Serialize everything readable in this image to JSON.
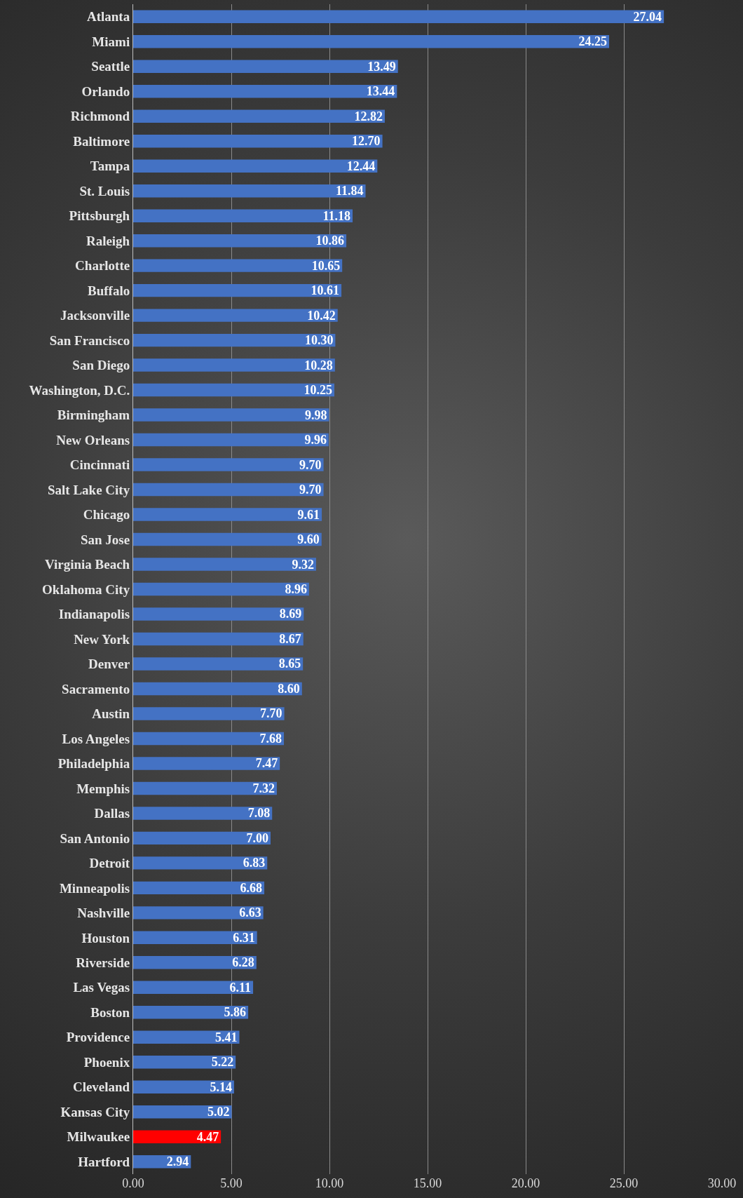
{
  "chart_data": {
    "type": "bar",
    "orientation": "horizontal",
    "categories": [
      "Atlanta",
      "Miami",
      "Seattle",
      "Orlando",
      "Richmond",
      "Baltimore",
      "Tampa",
      "St. Louis",
      "Pittsburgh",
      "Raleigh",
      "Charlotte",
      "Buffalo",
      "Jacksonville",
      "San Francisco",
      "San Diego",
      "Washington, D.C.",
      "Birmingham",
      "New Orleans",
      "Cincinnati",
      "Salt Lake City",
      "Chicago",
      "San Jose",
      "Virginia Beach",
      "Oklahoma City",
      "Indianapolis",
      "New York",
      "Denver",
      "Sacramento",
      "Austin",
      "Los Angeles",
      "Philadelphia",
      "Memphis",
      "Dallas",
      "San Antonio",
      "Detroit",
      "Minneapolis",
      "Nashville",
      "Houston",
      "Riverside",
      "Las Vegas",
      "Boston",
      "Providence",
      "Phoenix",
      "Cleveland",
      "Kansas City",
      "Milwaukee",
      "Hartford"
    ],
    "values": [
      27.04,
      24.25,
      13.49,
      13.44,
      12.82,
      12.7,
      12.44,
      11.84,
      11.18,
      10.86,
      10.65,
      10.61,
      10.42,
      10.3,
      10.28,
      10.25,
      9.98,
      9.96,
      9.7,
      9.7,
      9.61,
      9.6,
      9.32,
      8.96,
      8.69,
      8.67,
      8.65,
      8.6,
      7.7,
      7.68,
      7.47,
      7.32,
      7.08,
      7.0,
      6.83,
      6.68,
      6.63,
      6.31,
      6.28,
      6.11,
      5.86,
      5.41,
      5.22,
      5.14,
      5.02,
      4.47,
      2.94
    ],
    "value_labels": [
      "27.04",
      "24.25",
      "13.49",
      "13.44",
      "12.82",
      "12.70",
      "12.44",
      "11.84",
      "11.18",
      "10.86",
      "10.65",
      "10.61",
      "10.42",
      "10.30",
      "10.28",
      "10.25",
      "9.98",
      "9.96",
      "9.70",
      "9.70",
      "9.61",
      "9.60",
      "9.32",
      "8.96",
      "8.69",
      "8.67",
      "8.65",
      "8.60",
      "7.70",
      "7.68",
      "7.47",
      "7.32",
      "7.08",
      "7.00",
      "6.83",
      "6.68",
      "6.63",
      "6.31",
      "6.28",
      "6.11",
      "5.86",
      "5.41",
      "5.22",
      "5.14",
      "5.02",
      "4.47",
      "2.94"
    ],
    "colors": [
      "#4472c4",
      "#4472c4",
      "#4472c4",
      "#4472c4",
      "#4472c4",
      "#4472c4",
      "#4472c4",
      "#4472c4",
      "#4472c4",
      "#4472c4",
      "#4472c4",
      "#4472c4",
      "#4472c4",
      "#4472c4",
      "#4472c4",
      "#4472c4",
      "#4472c4",
      "#4472c4",
      "#4472c4",
      "#4472c4",
      "#4472c4",
      "#4472c4",
      "#4472c4",
      "#4472c4",
      "#4472c4",
      "#4472c4",
      "#4472c4",
      "#4472c4",
      "#4472c4",
      "#4472c4",
      "#4472c4",
      "#4472c4",
      "#4472c4",
      "#4472c4",
      "#4472c4",
      "#4472c4",
      "#4472c4",
      "#4472c4",
      "#4472c4",
      "#4472c4",
      "#4472c4",
      "#4472c4",
      "#4472c4",
      "#4472c4",
      "#4472c4",
      "#ff0000",
      "#4472c4"
    ],
    "xlim": [
      0,
      30
    ],
    "xticks": [
      {
        "value": 0,
        "label": "0.00"
      },
      {
        "value": 5,
        "label": "5.00"
      },
      {
        "value": 10,
        "label": "10.00"
      },
      {
        "value": 15,
        "label": "15.00"
      },
      {
        "value": 20,
        "label": "20.00"
      },
      {
        "value": 25,
        "label": "25.00"
      },
      {
        "value": 30,
        "label": "30.00"
      }
    ],
    "grid": "x",
    "legend": false
  }
}
